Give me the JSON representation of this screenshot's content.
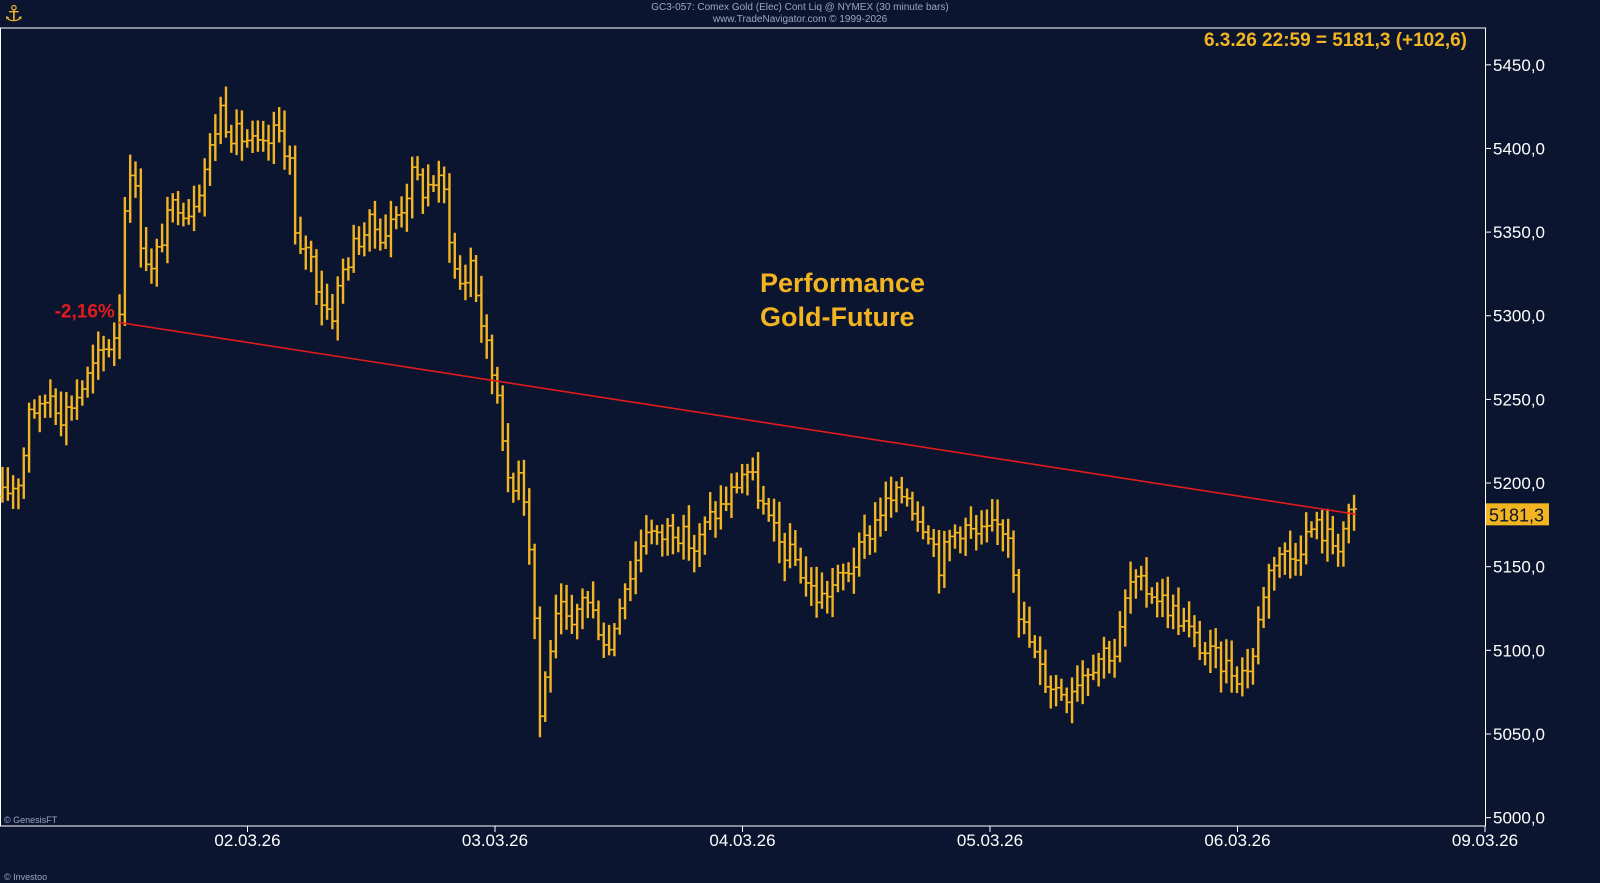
{
  "header": {
    "line1": "GC3-057:  Comex Gold (Elec) Cont Liq @ NYMEX  (30 minute bars)",
    "line2": "www.TradeNavigator.com © 1999-2026"
  },
  "logo": {
    "icon": "anchor-icon"
  },
  "footer": {
    "left_top": "© GenesisFT",
    "left_bottom": "© Investoo"
  },
  "colors": {
    "background": "#0c1530",
    "bars": "#f2b521",
    "trendline": "#e01c1c",
    "label": "#f2b521",
    "axis": "#ffffff"
  },
  "chart_data": {
    "type": "bar",
    "bar_style": "ohlc",
    "title": "Performance Gold-Future",
    "title_lines": [
      "Performance",
      "Gold-Future"
    ],
    "last_value_label": "6.3.26 22:59 = 5181,3 (+102,6)",
    "current_price": 5181.3,
    "current_price_label": "5181,3",
    "y_ticks": [
      5000,
      5050,
      5100,
      5150,
      5200,
      5250,
      5300,
      5350,
      5400,
      5450
    ],
    "y_tick_labels": [
      "5000,0",
      "5050,0",
      "5100,0",
      "5150,0",
      "5200,0",
      "5250,0",
      "5300,0",
      "5350,0",
      "5400,0",
      "5450,0"
    ],
    "ylim": [
      4995,
      5472
    ],
    "x_ticks": [
      1,
      2,
      3,
      4,
      5,
      6
    ],
    "x_tick_labels": [
      "02.03.26",
      "03.03.26",
      "04.03.26",
      "05.03.26",
      "06.03.26",
      "09.03.26"
    ],
    "xlim": [
      0.0,
      6.0
    ],
    "series_path": [
      [
        0.01,
        5192
      ],
      [
        0.05,
        5198
      ],
      [
        0.09,
        5205
      ],
      [
        0.11,
        5248
      ],
      [
        0.16,
        5242
      ],
      [
        0.2,
        5255
      ],
      [
        0.25,
        5240
      ],
      [
        0.3,
        5250
      ],
      [
        0.35,
        5262
      ],
      [
        0.4,
        5275
      ],
      [
        0.45,
        5285
      ],
      [
        0.48,
        5295
      ],
      [
        0.5,
        5360
      ],
      [
        0.53,
        5395
      ],
      [
        0.57,
        5345
      ],
      [
        0.61,
        5325
      ],
      [
        0.66,
        5350
      ],
      [
        0.71,
        5370
      ],
      [
        0.76,
        5362
      ],
      [
        0.81,
        5380
      ],
      [
        0.86,
        5405
      ],
      [
        0.89,
        5425
      ],
      [
        0.93,
        5410
      ],
      [
        1.0,
        5405
      ],
      [
        1.06,
        5398
      ],
      [
        1.12,
        5412
      ],
      [
        1.17,
        5395
      ],
      [
        1.2,
        5330
      ],
      [
        1.24,
        5345
      ],
      [
        1.29,
        5312
      ],
      [
        1.34,
        5300
      ],
      [
        1.38,
        5325
      ],
      [
        1.44,
        5345
      ],
      [
        1.5,
        5355
      ],
      [
        1.55,
        5348
      ],
      [
        1.62,
        5365
      ],
      [
        1.67,
        5385
      ],
      [
        1.71,
        5375
      ],
      [
        1.76,
        5382
      ],
      [
        1.8,
        5372
      ],
      [
        1.83,
        5330
      ],
      [
        1.87,
        5315
      ],
      [
        1.9,
        5335
      ],
      [
        1.94,
        5300
      ],
      [
        1.98,
        5270
      ],
      [
        2.02,
        5250
      ],
      [
        2.06,
        5185
      ],
      [
        2.1,
        5215
      ],
      [
        2.15,
        5150
      ],
      [
        2.18,
        5060
      ],
      [
        2.22,
        5100
      ],
      [
        2.26,
        5125
      ],
      [
        2.31,
        5110
      ],
      [
        2.35,
        5135
      ],
      [
        2.41,
        5118
      ],
      [
        2.46,
        5100
      ],
      [
        2.51,
        5135
      ],
      [
        2.56,
        5150
      ],
      [
        2.61,
        5175
      ],
      [
        2.66,
        5165
      ],
      [
        2.71,
        5175
      ],
      [
        2.76,
        5168
      ],
      [
        2.81,
        5160
      ],
      [
        2.86,
        5178
      ],
      [
        2.91,
        5185
      ],
      [
        2.96,
        5195
      ],
      [
        3.01,
        5210
      ],
      [
        3.06,
        5195
      ],
      [
        3.11,
        5175
      ],
      [
        3.16,
        5160
      ],
      [
        3.21,
        5155
      ],
      [
        3.26,
        5140
      ],
      [
        3.31,
        5130
      ],
      [
        3.36,
        5138
      ],
      [
        3.41,
        5145
      ],
      [
        3.46,
        5155
      ],
      [
        3.51,
        5170
      ],
      [
        3.56,
        5185
      ],
      [
        3.61,
        5190
      ],
      [
        3.66,
        5195
      ],
      [
        3.71,
        5180
      ],
      [
        3.76,
        5172
      ],
      [
        3.79,
        5150
      ],
      [
        3.84,
        5168
      ],
      [
        3.89,
        5175
      ],
      [
        3.94,
        5168
      ],
      [
        3.99,
        5170
      ],
      [
        4.04,
        5175
      ],
      [
        4.08,
        5170
      ],
      [
        4.12,
        5120
      ],
      [
        4.16,
        5105
      ],
      [
        4.21,
        5085
      ],
      [
        4.26,
        5078
      ],
      [
        4.31,
        5075
      ],
      [
        4.36,
        5085
      ],
      [
        4.41,
        5092
      ],
      [
        4.46,
        5100
      ],
      [
        4.51,
        5098
      ],
      [
        4.56,
        5140
      ],
      [
        4.61,
        5138
      ],
      [
        4.66,
        5135
      ],
      [
        4.71,
        5128
      ],
      [
        4.76,
        5120
      ],
      [
        4.81,
        5110
      ],
      [
        4.86,
        5100
      ],
      [
        4.91,
        5095
      ],
      [
        4.96,
        5090
      ],
      [
        5.01,
        5085
      ],
      [
        5.06,
        5095
      ],
      [
        5.11,
        5140
      ],
      [
        5.16,
        5160
      ],
      [
        5.21,
        5155
      ],
      [
        5.26,
        5165
      ],
      [
        5.31,
        5175
      ],
      [
        5.36,
        5168
      ],
      [
        5.4,
        5162
      ],
      [
        5.44,
        5178
      ],
      [
        5.48,
        5181.3
      ]
    ],
    "trendline": {
      "start": [
        0.48,
        5296
      ],
      "end": [
        5.48,
        5181.3
      ]
    },
    "annotations": [
      {
        "text": "-2,16%",
        "x": 0.48,
        "y": 5296,
        "color": "#e01c1c"
      }
    ],
    "grid": false,
    "legend": "none"
  }
}
